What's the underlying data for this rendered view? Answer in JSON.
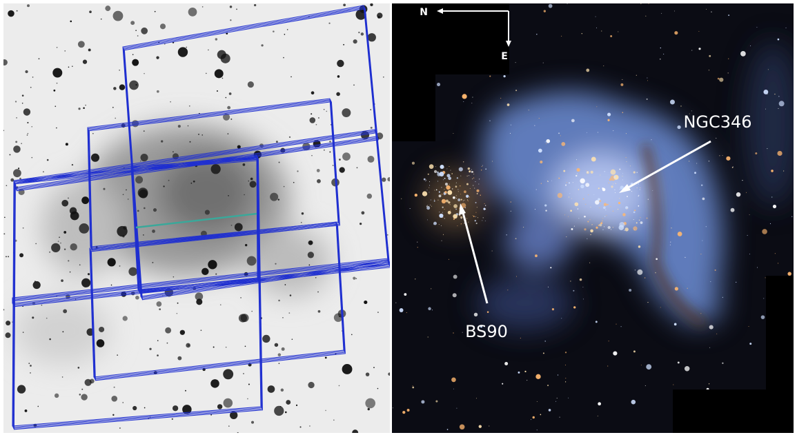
{
  "compass": {
    "north": "N",
    "east": "E"
  },
  "annotations": {
    "cluster": "NGC346",
    "companion": "BS90"
  }
}
